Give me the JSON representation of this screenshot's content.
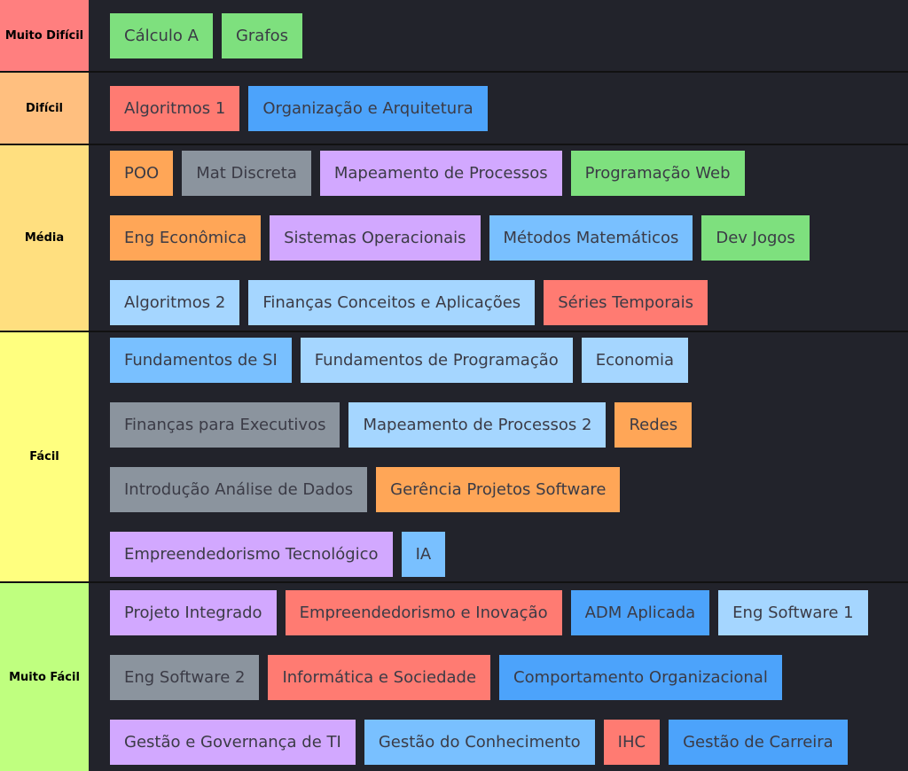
{
  "tiers": [
    {
      "label": "Muito Difícil",
      "color": "#ff7f7f",
      "items": [
        {
          "label": "Cálculo A",
          "color": "#7ee07e"
        },
        {
          "label": "Grafos",
          "color": "#7ee07e"
        }
      ]
    },
    {
      "label": "Difícil",
      "color": "#ffbf7f",
      "items": [
        {
          "label": "Algoritmos 1",
          "color": "#ff7b72"
        },
        {
          "label": "Organização e Arquitetura",
          "color": "#4ca3fb"
        }
      ]
    },
    {
      "label": "Média",
      "color": "#ffdf7f",
      "items": [
        {
          "label": "POO",
          "color": "#ffa657"
        },
        {
          "label": "Mat Discreta",
          "color": "#8b949e"
        },
        {
          "label": "Mapeamento de Processos",
          "color": "#d2a8ff"
        },
        {
          "label": "Programação Web",
          "color": "#7ee07e"
        },
        {
          "label": "Eng Econômica",
          "color": "#ffa657"
        },
        {
          "label": "Sistemas Operacionais",
          "color": "#d2a8ff"
        },
        {
          "label": "Métodos Matemáticos",
          "color": "#79c0ff"
        },
        {
          "label": "Dev Jogos",
          "color": "#7ee07e"
        },
        {
          "label": "Algoritmos 2",
          "color": "#a5d6ff"
        },
        {
          "label": "Finanças Conceitos e Aplicações",
          "color": "#a5d6ff"
        },
        {
          "label": "Séries Temporais",
          "color": "#ff7b72"
        }
      ]
    },
    {
      "label": "Fácil",
      "color": "#ffff7f",
      "items": [
        {
          "label": "Fundamentos de SI",
          "color": "#79c0ff"
        },
        {
          "label": "Fundamentos de Programação",
          "color": "#a5d6ff"
        },
        {
          "label": "Economia",
          "color": "#a5d6ff"
        },
        {
          "label": "Finanças para Executivos",
          "color": "#8b949e"
        },
        {
          "label": "Mapeamento de Processos 2",
          "color": "#a5d6ff"
        },
        {
          "label": "Redes",
          "color": "#ffa657"
        },
        {
          "label": "Introdução Análise de Dados",
          "color": "#8b949e"
        },
        {
          "label": "Gerência Projetos Software",
          "color": "#ffa657"
        },
        {
          "label": "Empreendedorismo Tecnológico",
          "color": "#d2a8ff"
        },
        {
          "label": "IA",
          "color": "#79c0ff"
        }
      ]
    },
    {
      "label": "Muito Fácil",
      "color": "#bfff7f",
      "items": [
        {
          "label": "Projeto Integrado",
          "color": "#d2a8ff"
        },
        {
          "label": "Empreendedorismo e Inovação",
          "color": "#ff7b72"
        },
        {
          "label": "ADM Aplicada",
          "color": "#4ca3fb"
        },
        {
          "label": "Eng Software 1",
          "color": "#a5d6ff"
        },
        {
          "label": "Eng Software 2",
          "color": "#8b949e"
        },
        {
          "label": "Informática e Sociedade",
          "color": "#ff7b72"
        },
        {
          "label": "Comportamento Organizacional",
          "color": "#4ca3fb"
        },
        {
          "label": "Gestão e Governança de TI",
          "color": "#d2a8ff"
        },
        {
          "label": "Gestão do Conhecimento",
          "color": "#79c0ff"
        },
        {
          "label": "IHC",
          "color": "#ff7b72"
        },
        {
          "label": "Gestão de Carreira",
          "color": "#4ca3fb"
        }
      ]
    }
  ]
}
